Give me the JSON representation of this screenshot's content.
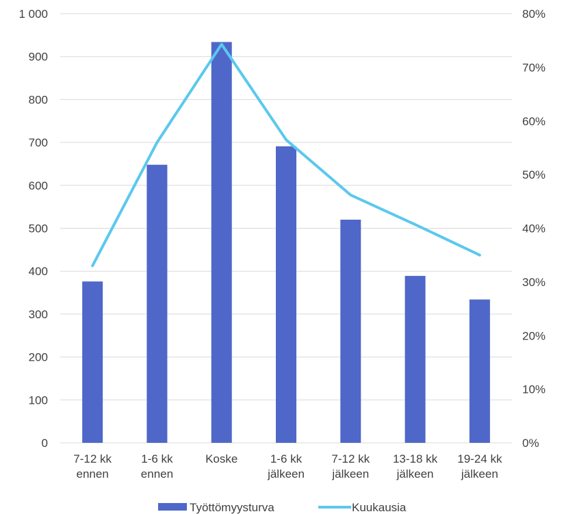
{
  "chart_data": {
    "type": "bar",
    "categories": [
      [
        "7-12 kk",
        "ennen"
      ],
      [
        "1-6 kk",
        "ennen"
      ],
      [
        "Koske"
      ],
      [
        "1-6 kk",
        "jälkeen"
      ],
      [
        "7-12 kk",
        "jälkeen"
      ],
      [
        "13-18 kk",
        "jälkeen"
      ],
      [
        "19-24 kk",
        "jälkeen"
      ]
    ],
    "series": [
      {
        "name": "Työttömyysturva",
        "type": "bar",
        "axis": "left",
        "color": "#4f67c8",
        "values": [
          376,
          648,
          934,
          691,
          520,
          389,
          334
        ]
      },
      {
        "name": "Kuukausia",
        "type": "line",
        "axis": "right",
        "color": "#5bc8ee",
        "values": [
          0.33,
          0.56,
          0.743,
          0.565,
          0.462,
          0.407,
          0.35
        ]
      }
    ],
    "y_left": {
      "min": 0,
      "max": 1000,
      "step": 100,
      "tick_labels": [
        "0",
        "100",
        "200",
        "300",
        "400",
        "500",
        "600",
        "700",
        "800",
        "900",
        "1 000"
      ]
    },
    "y_right": {
      "min": 0,
      "max": 0.8,
      "step": 0.1,
      "tick_labels": [
        "0%",
        "10%",
        "20%",
        "30%",
        "40%",
        "50%",
        "60%",
        "70%",
        "80%"
      ]
    },
    "grid": true,
    "grid_color": "#d9d9d9",
    "legend_position": "bottom"
  }
}
